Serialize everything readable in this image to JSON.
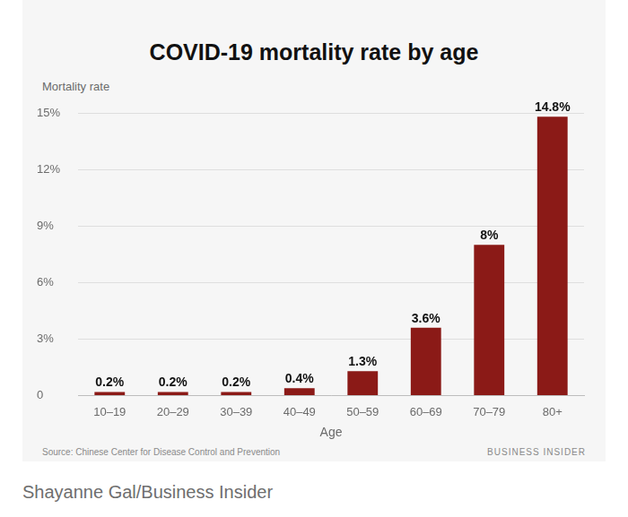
{
  "chart_data": {
    "type": "bar",
    "title": "COVID-19 mortality rate by age",
    "y_label": "Mortality rate",
    "x_label": "Age",
    "categories": [
      "10–19",
      "20–29",
      "30–39",
      "40–49",
      "50–59",
      "60–69",
      "70–79",
      "80+"
    ],
    "values": [
      0.2,
      0.2,
      0.2,
      0.4,
      1.3,
      3.6,
      8,
      14.8
    ],
    "value_labels": [
      "0.2%",
      "0.2%",
      "0.2%",
      "0.4%",
      "1.3%",
      "3.6%",
      "8%",
      "14.8%"
    ],
    "color": "#8b1a17",
    "ylim": [
      0,
      15
    ],
    "yticks": [
      0,
      {
        "value": 3,
        "label": "3%"
      },
      {
        "value": 6,
        "label": "6%"
      },
      {
        "value": 9,
        "label": "9%"
      },
      {
        "value": 12,
        "label": "12%"
      },
      {
        "value": 15,
        "label": "15%"
      }
    ],
    "grid": true,
    "data_labels": true,
    "source": "Source: Chinese Center for Disease Control and Prevention",
    "brand": "BUSINESS INSIDER",
    "credit": "Shayanne Gal/Business Insider"
  }
}
